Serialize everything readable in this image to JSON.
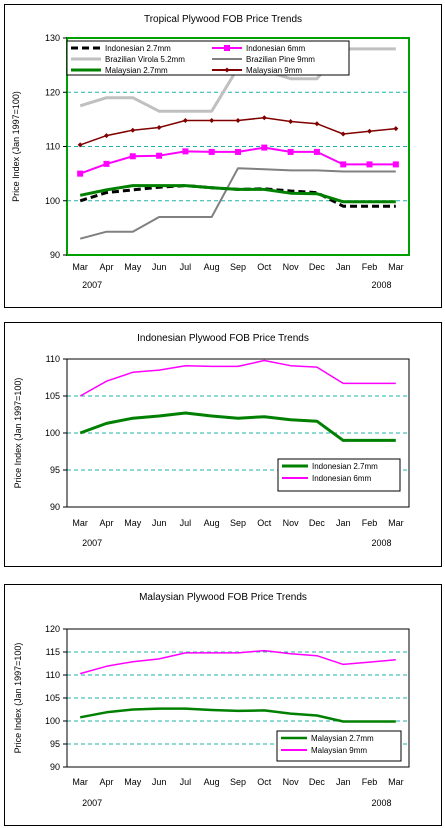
{
  "chart_data": [
    {
      "type": "line",
      "title": "Tropical Plywood FOB Price Trends",
      "ylabel": "Price Index (Jan 1997=100)",
      "xlabel": "",
      "categories": [
        "Mar",
        "Apr",
        "May",
        "Jun",
        "Jul",
        "Aug",
        "Sep",
        "Oct",
        "Nov",
        "Dec",
        "Jan",
        "Feb",
        "Mar"
      ],
      "year_labels": [
        "2007",
        "2008"
      ],
      "ylim": [
        90,
        130
      ],
      "yticks": [
        90,
        100,
        110,
        120,
        130
      ],
      "plot_background": "#ffffff",
      "grid": "dashed horizontal",
      "legend_position": "top",
      "series": [
        {
          "name": "Indonesian 2.7mm",
          "color": "#000000",
          "dash": "7,4",
          "width": 3,
          "values": [
            100,
            101.5,
            102,
            102.5,
            102.8,
            102.4,
            102.1,
            102.2,
            101.8,
            101.5,
            99,
            99,
            99
          ]
        },
        {
          "name": "Indonesian 6mm",
          "color": "#ff00ff",
          "width": 2,
          "marker": "square",
          "values": [
            105,
            106.8,
            108.2,
            108.3,
            109.1,
            109,
            109,
            109.8,
            109,
            109,
            106.7,
            106.7,
            106.7
          ]
        },
        {
          "name": "Brazilian Virola 5.2mm",
          "color": "#c0c0c0",
          "width": 3,
          "values": [
            117.5,
            119,
            119,
            116.5,
            116.5,
            116.5,
            124.5,
            124,
            122.5,
            122.5,
            128,
            128,
            128
          ]
        },
        {
          "name": "Brazilian Pine 9mm",
          "color": "#808080",
          "width": 2,
          "values": [
            93,
            94.3,
            94.3,
            97,
            97,
            97,
            106,
            105.8,
            105.6,
            105.6,
            105.4,
            105.4,
            105.4
          ]
        },
        {
          "name": "Malaysian 2.7mm",
          "color": "#008000",
          "width": 3,
          "values": [
            101,
            102,
            102.8,
            102.8,
            102.8,
            102.4,
            102.1,
            102.1,
            101.4,
            101.3,
            99.8,
            99.8,
            99.8
          ]
        },
        {
          "name": "Malaysian 9mm",
          "color": "#800000",
          "width": 1.5,
          "marker": "diamond",
          "values": [
            110.3,
            112,
            113,
            113.5,
            114.8,
            114.8,
            114.8,
            115.3,
            114.6,
            114.2,
            112.3,
            112.8,
            113.3
          ]
        }
      ]
    },
    {
      "type": "line",
      "title": "Indonesian Plywood FOB Price Trends",
      "ylabel": "Price Index (Jan 1997=100)",
      "xlabel": "",
      "categories": [
        "Mar",
        "Apr",
        "May",
        "Jun",
        "Jul",
        "Aug",
        "Sep",
        "Oct",
        "Nov",
        "Dec",
        "Jan",
        "Feb",
        "Mar"
      ],
      "year_labels": [
        "2007",
        "2008"
      ],
      "ylim": [
        90,
        110
      ],
      "yticks": [
        90,
        95,
        100,
        105,
        110
      ],
      "plot_background": "#ffffff",
      "grid": "dashed horizontal",
      "legend_position": "bottom-right",
      "series": [
        {
          "name": "Indonesian 2.7mm",
          "color": "#008000",
          "width": 3,
          "values": [
            100,
            101.3,
            102,
            102.3,
            102.7,
            102.3,
            102,
            102.2,
            101.8,
            101.6,
            99,
            99,
            99
          ]
        },
        {
          "name": "Indonesian 6mm",
          "color": "#ff00ff",
          "width": 1.5,
          "values": [
            105,
            107,
            108.2,
            108.5,
            109.1,
            109,
            109,
            109.8,
            109.1,
            108.9,
            106.7,
            106.7,
            106.7
          ]
        }
      ]
    },
    {
      "type": "line",
      "title": "Malaysian Plywood FOB Price Trends",
      "ylabel": "Price Index (Jan 1997=100)",
      "xlabel": "",
      "categories": [
        "Mar",
        "Apr",
        "May",
        "Jun",
        "Jul",
        "Aug",
        "Sep",
        "Oct",
        "Nov",
        "Dec",
        "Jan",
        "Feb",
        "Mar"
      ],
      "year_labels": [
        "2007",
        "2008"
      ],
      "ylim": [
        90,
        120
      ],
      "yticks": [
        90,
        95,
        100,
        105,
        110,
        115,
        120
      ],
      "plot_background": "#ffffff",
      "grid": "dashed horizontal",
      "legend_position": "bottom-right",
      "series": [
        {
          "name": "Malaysian 2.7mm",
          "color": "#008000",
          "width": 2.5,
          "values": [
            100.8,
            101.9,
            102.5,
            102.7,
            102.7,
            102.4,
            102.2,
            102.3,
            101.6,
            101.2,
            99.9,
            99.9,
            99.9
          ]
        },
        {
          "name": "Malaysian 9mm",
          "color": "#ff00ff",
          "width": 1.5,
          "values": [
            110.3,
            111.9,
            112.9,
            113.5,
            114.8,
            114.8,
            114.8,
            115.3,
            114.6,
            114.2,
            112.3,
            112.8,
            113.3
          ]
        }
      ]
    }
  ]
}
